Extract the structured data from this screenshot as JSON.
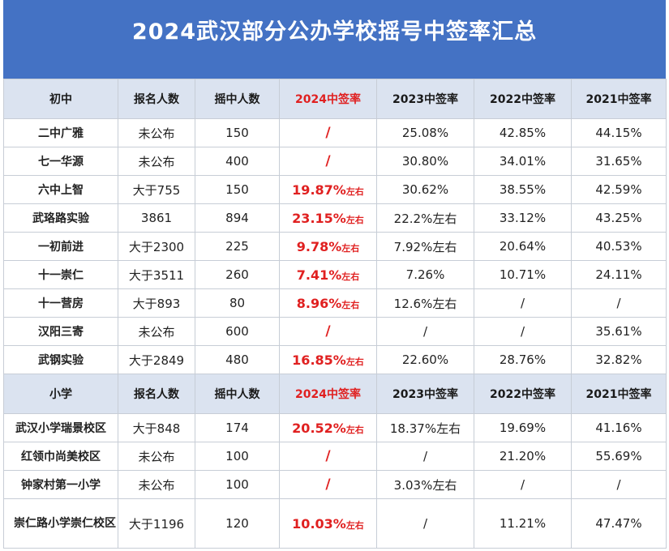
{
  "title": "2024武汉部分公办学校摇号中签率汇总",
  "middle_header": [
    "初中",
    "报名人数",
    "摇中人数",
    "2024中签率",
    "2023中签率",
    "2022中签率",
    "2021中签率"
  ],
  "middle_rows": [
    {
      "name": "二中广雅",
      "applicants": "未公布",
      "selected": "150",
      "r2024": "/",
      "r2024_sfx": "",
      "r2023": "25.08%",
      "r2022": "42.85%",
      "r2021": "44.15%"
    },
    {
      "name": "七一华源",
      "applicants": "未公布",
      "selected": "400",
      "r2024": "/",
      "r2024_sfx": "",
      "r2023": "30.80%",
      "r2022": "34.01%",
      "r2021": "31.65%"
    },
    {
      "name": "六中上智",
      "applicants": "大于755",
      "selected": "150",
      "r2024": "19.87%",
      "r2024_sfx": "左右",
      "r2023": "30.62%",
      "r2022": "38.55%",
      "r2021": "42.59%"
    },
    {
      "name": "武珞路实验",
      "applicants": "3861",
      "selected": "894",
      "r2024": "23.15%",
      "r2024_sfx": "左右",
      "r2023": "22.2%左右",
      "r2022": "33.12%",
      "r2021": "43.25%"
    },
    {
      "name": "一初前进",
      "applicants": "大于2300",
      "selected": "225",
      "r2024": "9.78%",
      "r2024_sfx": "左右",
      "r2023": "7.92%左右",
      "r2022": "20.64%",
      "r2021": "40.53%"
    },
    {
      "name": "十一崇仁",
      "applicants": "大于3511",
      "selected": "260",
      "r2024": "7.41%",
      "r2024_sfx": "左右",
      "r2023": "7.26%",
      "r2022": "10.71%",
      "r2021": "24.11%"
    },
    {
      "name": "十一营房",
      "applicants": "大于893",
      "selected": "80",
      "r2024": "8.96%",
      "r2024_sfx": "左右",
      "r2023": "12.6%左右",
      "r2022": "/",
      "r2021": "/"
    },
    {
      "name": "汉阳三寄",
      "applicants": "未公布",
      "selected": "600",
      "r2024": "/",
      "r2024_sfx": "",
      "r2023": "/",
      "r2022": "/",
      "r2021": "35.61%"
    },
    {
      "name": "武钢实验",
      "applicants": "大于2849",
      "selected": "480",
      "r2024": "16.85%",
      "r2024_sfx": "左右",
      "r2023": "22.60%",
      "r2022": "28.76%",
      "r2021": "32.82%"
    }
  ],
  "primary_header": [
    "小学",
    "报名人数",
    "摇中人数",
    "2024中签率",
    "2023中签率",
    "2022中签率",
    "2021中签率"
  ],
  "primary_rows": [
    {
      "name": "武汉小学瑞景校区",
      "applicants": "大于848",
      "selected": "174",
      "r2024": "20.52%",
      "r2024_sfx": "左右",
      "r2023": "18.37%左右",
      "r2022": "19.69%",
      "r2021": "41.16%"
    },
    {
      "name": "红领巾尚美校区",
      "applicants": "未公布",
      "selected": "100",
      "r2024": "/",
      "r2024_sfx": "",
      "r2023": "/",
      "r2022": "21.20%",
      "r2021": "55.69%"
    },
    {
      "name": "钟家村第一小学",
      "applicants": "未公布",
      "selected": "100",
      "r2024": "/",
      "r2024_sfx": "",
      "r2023": "3.03%左右",
      "r2022": "/",
      "r2021": "/"
    },
    {
      "name": "崇仁路小学崇仁校区",
      "applicants": "大于1196",
      "selected": "120",
      "r2024": "10.03%",
      "r2024_sfx": "左右",
      "r2023": "/",
      "r2022": "11.21%",
      "r2021": "47.47%"
    }
  ],
  "colors": {
    "title_bg": "#4472c4",
    "header_bg": "#dbe3f0",
    "highlight": "#e02020"
  }
}
